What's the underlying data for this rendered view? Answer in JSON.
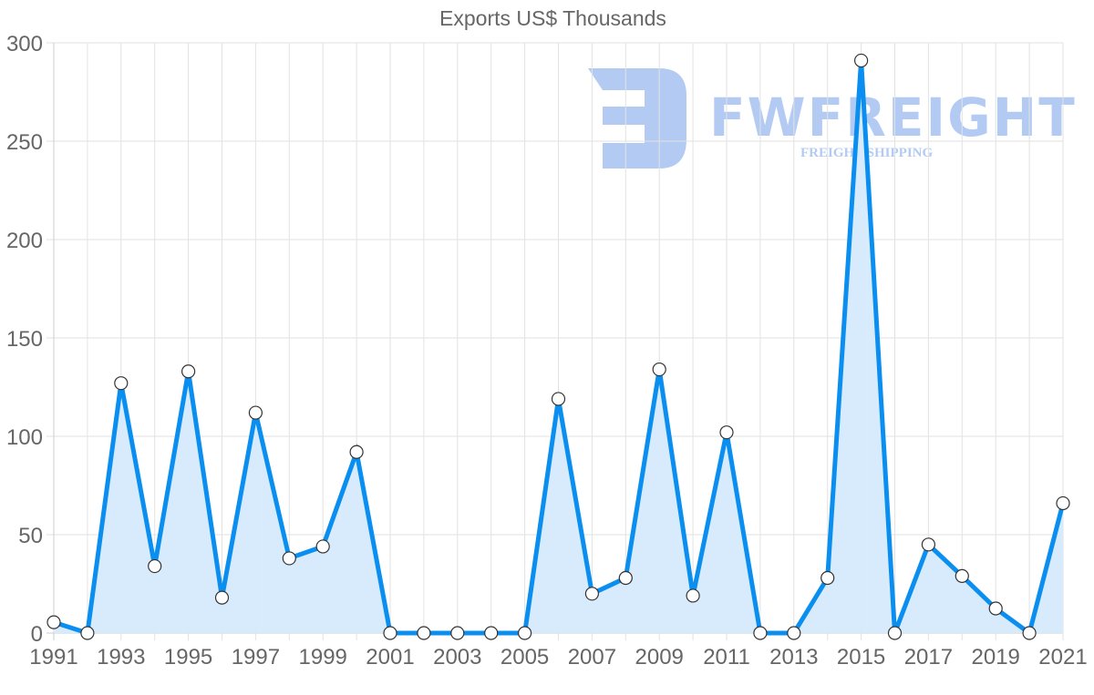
{
  "chart": {
    "title": "Exports US$ Thousands",
    "line_color": "#0a8ff0",
    "fill_color": "#d6eafc",
    "point_fill": "#ffffff",
    "point_stroke": "#333333"
  },
  "watermark": {
    "brand": "FWFREIGHT",
    "tagline": "FREIGHT SHIPPING",
    "color": "#b3cbf3"
  },
  "chart_data": {
    "type": "area",
    "title": "Exports US$ Thousands",
    "xlabel": "",
    "ylabel": "",
    "ylim": [
      0,
      300
    ],
    "yticks": [
      0,
      50,
      100,
      150,
      200,
      250,
      300
    ],
    "xtick_labels": [
      "1991",
      "1993",
      "1995",
      "1997",
      "1999",
      "2001",
      "2003",
      "2005",
      "2007",
      "2009",
      "2011",
      "2013",
      "2015",
      "2017",
      "2019",
      "2021"
    ],
    "grid": true,
    "legend": null,
    "x": [
      1991,
      1992,
      1993,
      1994,
      1995,
      1996,
      1997,
      1998,
      1999,
      2000,
      2001,
      2002,
      2003,
      2004,
      2005,
      2006,
      2007,
      2008,
      2009,
      2010,
      2011,
      2012,
      2013,
      2014,
      2015,
      2016,
      2017,
      2018,
      2019,
      2020,
      2021
    ],
    "series": [
      {
        "name": "Exports US$ Thousands",
        "values": [
          5.5,
          0,
          127,
          34,
          133,
          18,
          112,
          38,
          44,
          92,
          0,
          0,
          0,
          0,
          0,
          119,
          20,
          28,
          134,
          19,
          102,
          0,
          0,
          28,
          291,
          0,
          45,
          29,
          12.5,
          0,
          66
        ]
      }
    ]
  }
}
